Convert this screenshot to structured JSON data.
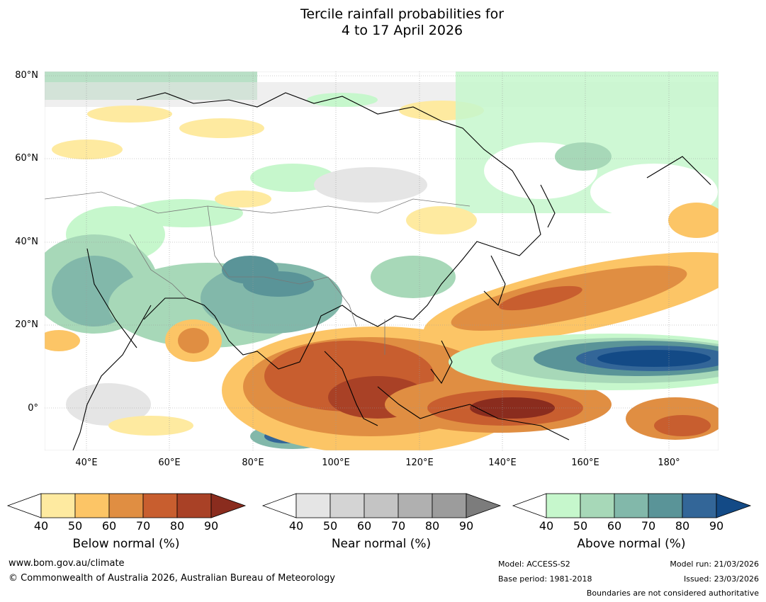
{
  "title": {
    "line1": "Tercile rainfall probabilities for",
    "line2": "4 to 17 April 2026"
  },
  "map": {
    "latitude_labels": [
      "80°N",
      "60°N",
      "40°N",
      "20°N",
      "0°"
    ],
    "longitude_labels": [
      "40°E",
      "60°E",
      "80°E",
      "100°E",
      "120°E",
      "140°E",
      "160°E",
      "180°"
    ]
  },
  "legends": {
    "below": {
      "title": "Below normal (%)",
      "ticks": [
        "40",
        "50",
        "60",
        "70",
        "80",
        "90"
      ],
      "colors": [
        "#ffffff",
        "#feeaa0",
        "#fcc566",
        "#e08e42",
        "#c85e2f",
        "#a94126",
        "#8a2c1e"
      ]
    },
    "near": {
      "title": "Near normal (%)",
      "ticks": [
        "40",
        "50",
        "60",
        "70",
        "80",
        "90"
      ],
      "colors": [
        "#ffffff",
        "#e5e5e5",
        "#d4d4d4",
        "#c4c4c4",
        "#b0b0b0",
        "#9c9c9c",
        "#7c7c7c"
      ]
    },
    "above": {
      "title": "Above normal (%)",
      "ticks": [
        "40",
        "50",
        "60",
        "70",
        "80",
        "90"
      ],
      "colors": [
        "#ffffff",
        "#c6f7cc",
        "#a7d8b8",
        "#82b8aa",
        "#5a9498",
        "#336698",
        "#134a86"
      ]
    }
  },
  "footer": {
    "website": "www.bom.gov.au/climate",
    "copyright": "© Commonwealth of Australia 2026, Australian Bureau of Meteorology",
    "model": "Model: ACCESS-S2",
    "base_period": "Base period: 1981-2018",
    "model_run": "Model run: 21/03/2026",
    "issued": "Issued: 23/03/2026",
    "disclaimer": "Boundaries are not considered authoritative"
  }
}
